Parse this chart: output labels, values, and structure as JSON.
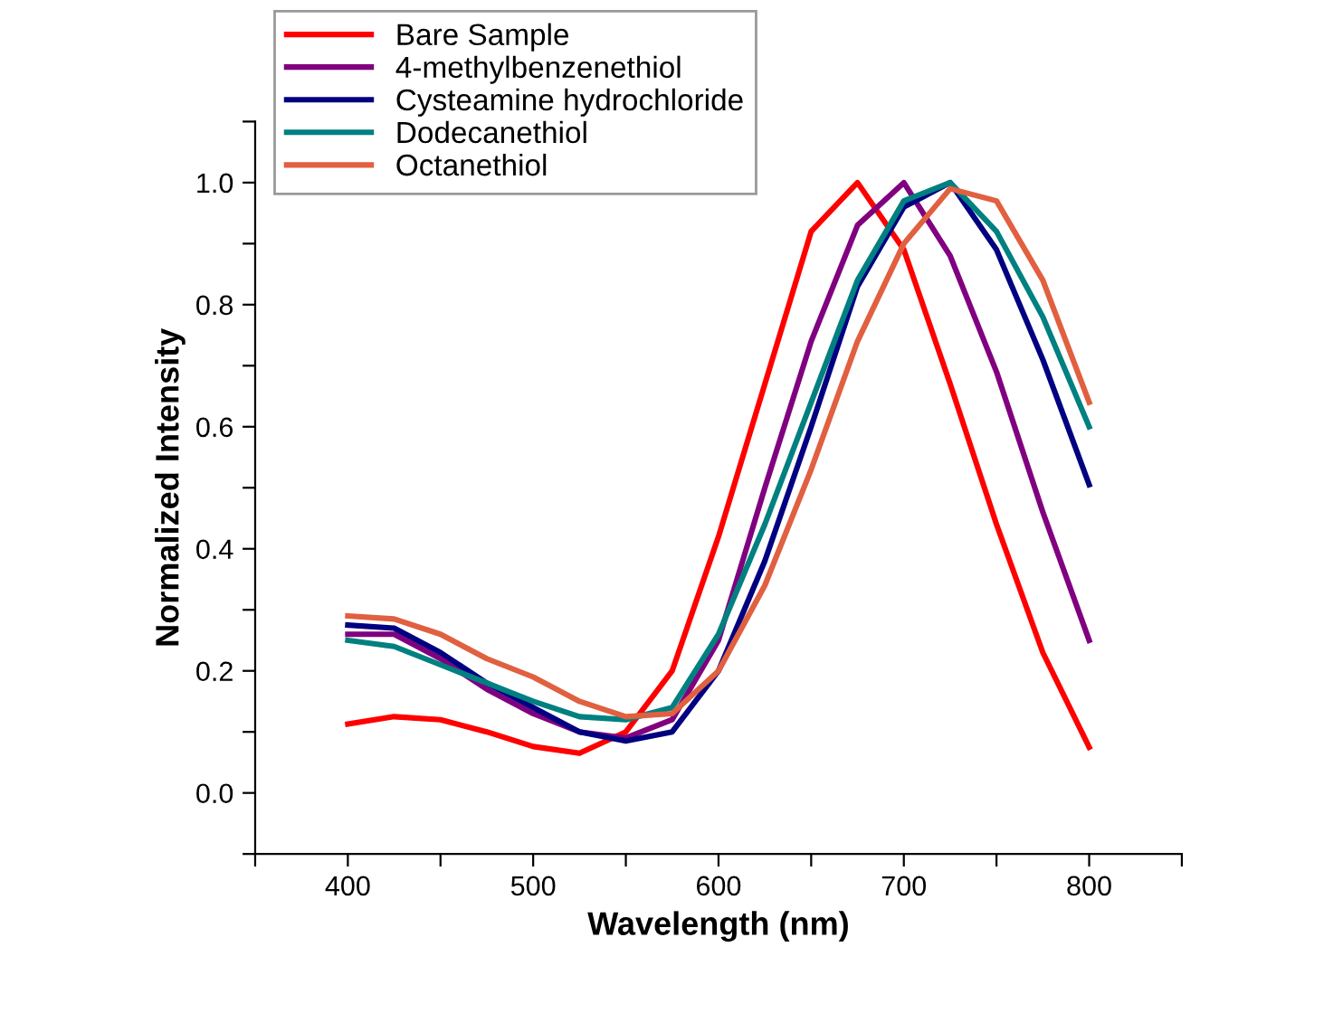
{
  "chart_data": {
    "type": "line",
    "xlabel": "Wavelength (nm)",
    "ylabel": "Normalized Intensity",
    "x": [
      400,
      425,
      450,
      475,
      500,
      525,
      550,
      575,
      600,
      625,
      650,
      675,
      700,
      725,
      750,
      775,
      800
    ],
    "series": [
      {
        "name": "Bare Sample",
        "color": "#ff0000",
        "values": [
          0.113,
          0.125,
          0.12,
          0.1,
          0.076,
          0.065,
          0.1,
          0.2,
          0.42,
          0.67,
          0.92,
          1.0,
          0.89,
          0.67,
          0.44,
          0.23,
          0.075
        ]
      },
      {
        "name": "4-methylbenzenethiol",
        "color": "#800080",
        "values": [
          0.26,
          0.26,
          0.22,
          0.17,
          0.13,
          0.1,
          0.09,
          0.12,
          0.25,
          0.5,
          0.74,
          0.93,
          1.0,
          0.88,
          0.69,
          0.46,
          0.25
        ]
      },
      {
        "name": "Cysteamine hydrochloride",
        "color": "#000080",
        "values": [
          0.275,
          0.27,
          0.23,
          0.18,
          0.14,
          0.1,
          0.085,
          0.1,
          0.2,
          0.38,
          0.6,
          0.83,
          0.96,
          1.0,
          0.89,
          0.71,
          0.505
        ]
      },
      {
        "name": "Dodecanethiol",
        "color": "#008080",
        "values": [
          0.25,
          0.24,
          0.21,
          0.18,
          0.15,
          0.125,
          0.12,
          0.14,
          0.26,
          0.44,
          0.64,
          0.84,
          0.97,
          1.0,
          0.92,
          0.78,
          0.6
        ]
      },
      {
        "name": "Octanethiol",
        "color": "#e06040",
        "values": [
          0.29,
          0.285,
          0.26,
          0.22,
          0.19,
          0.15,
          0.125,
          0.13,
          0.2,
          0.34,
          0.53,
          0.74,
          0.9,
          0.99,
          0.97,
          0.84,
          0.64
        ]
      }
    ],
    "xlim": [
      350,
      850
    ],
    "ylim": [
      -0.1,
      1.1
    ],
    "xticks": [
      {
        "value": 350,
        "label": null
      },
      400,
      {
        "value": 450,
        "label": null
      },
      500,
      {
        "value": 550,
        "label": null
      },
      600,
      {
        "value": 650,
        "label": null
      },
      700,
      {
        "value": 750,
        "label": null
      },
      800,
      {
        "value": 850,
        "label": null
      }
    ],
    "yticks": [
      {
        "value": -0.1,
        "label": null
      },
      {
        "value": 0.0,
        "label": "0.0"
      },
      {
        "value": 0.1,
        "label": null
      },
      {
        "value": 0.2,
        "label": "0.2"
      },
      {
        "value": 0.3,
        "label": null
      },
      {
        "value": 0.4,
        "label": "0.4"
      },
      {
        "value": 0.5,
        "label": null
      },
      {
        "value": 0.6,
        "label": "0.6"
      },
      {
        "value": 0.7,
        "label": null
      },
      {
        "value": 0.8,
        "label": "0.8"
      },
      {
        "value": 0.9,
        "label": null
      },
      {
        "value": 1.0,
        "label": "1.0"
      },
      {
        "value": 1.1,
        "label": null
      }
    ],
    "grid": false,
    "legend": "top left",
    "marker": "none",
    "line_style": "solid"
  }
}
